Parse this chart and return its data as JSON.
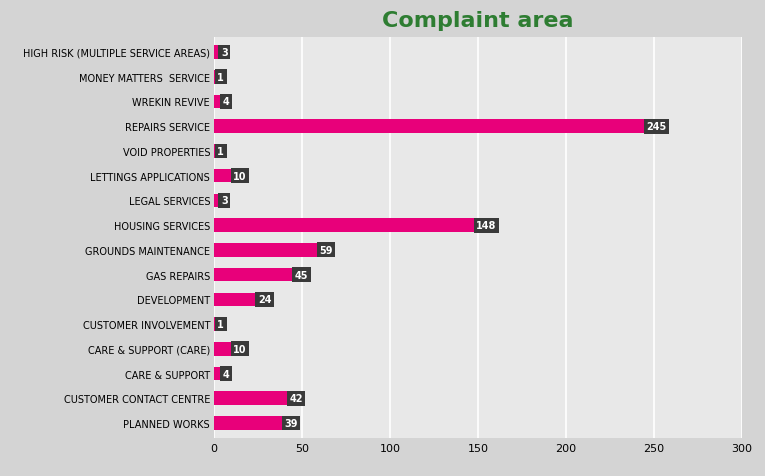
{
  "title": "Complaint area",
  "title_color": "#2e7d32",
  "title_fontsize": 16,
  "categories": [
    "HIGH RISK (MULTIPLE SERVICE AREAS)",
    "MONEY MATTERS  SERVICE",
    "WREKIN REVIVE",
    "REPAIRS SERVICE",
    "VOID PROPERTIES",
    "LETTINGS APPLICATIONS",
    "LEGAL SERVICES",
    "HOUSING SERVICES",
    "GROUNDS MAINTENANCE",
    "GAS REPAIRS",
    "DEVELOPMENT",
    "CUSTOMER INVOLVEMENT",
    "CARE & SUPPORT (CARE)",
    "CARE & SUPPORT",
    "CUSTOMER CONTACT CENTRE",
    "PLANNED WORKS"
  ],
  "values": [
    3,
    1,
    4,
    245,
    1,
    10,
    3,
    148,
    59,
    45,
    24,
    1,
    10,
    4,
    42,
    39
  ],
  "bar_color": "#e8007a",
  "label_bg_color": "#3a3a3a",
  "label_text_color": "#ffffff",
  "background_color": "#d4d4d4",
  "plot_bg_color": "#e8e8e8",
  "xlim": [
    0,
    300
  ],
  "xticks": [
    0,
    50,
    100,
    150,
    200,
    250,
    300
  ],
  "grid_color": "#ffffff",
  "tick_fontsize": 8,
  "ytick_fontsize": 7,
  "label_fontsize": 7,
  "bar_height": 0.55
}
